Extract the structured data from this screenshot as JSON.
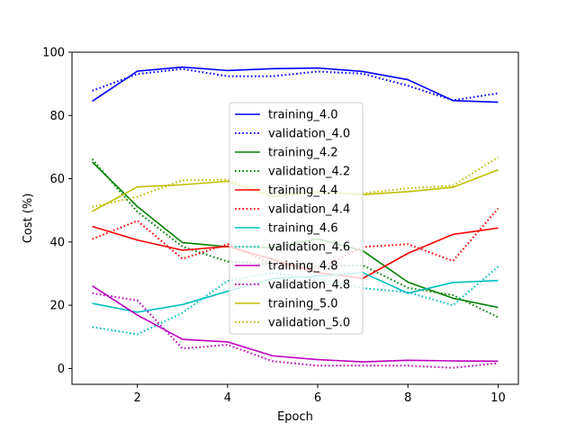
{
  "chart_data": {
    "type": "line",
    "title": "",
    "xlabel": "Epoch",
    "ylabel": "Cost (%)",
    "xlim": [
      0.55,
      10.45
    ],
    "ylim": [
      -5,
      100
    ],
    "xticks": [
      2,
      4,
      6,
      8,
      10
    ],
    "yticks": [
      0,
      20,
      40,
      60,
      80,
      100
    ],
    "grid": false,
    "legend_position": "center",
    "x": [
      1,
      2,
      3,
      4,
      5,
      6,
      7,
      8,
      9,
      10
    ],
    "series": [
      {
        "name": "training_4.0",
        "color": "#0000ff",
        "style": "solid",
        "values": [
          84.5,
          94.0,
          95.3,
          94.2,
          94.8,
          95.0,
          93.9,
          91.3,
          84.7,
          84.2
        ]
      },
      {
        "name": "validation_4.0",
        "color": "#0000ff",
        "style": "dotted",
        "values": [
          87.8,
          93.1,
          94.7,
          92.4,
          92.4,
          93.9,
          93.2,
          89.4,
          84.8,
          87.0
        ]
      },
      {
        "name": "training_4.2",
        "color": "#008000",
        "style": "solid",
        "values": [
          65.3,
          51.2,
          39.8,
          38.5,
          38.2,
          41.0,
          37.2,
          27.3,
          22.2,
          19.3
        ]
      },
      {
        "name": "validation_4.2",
        "color": "#008000",
        "style": "dotted",
        "values": [
          66.2,
          49.5,
          38.5,
          33.8,
          33.0,
          32.4,
          32.6,
          25.5,
          23.2,
          16.2
        ]
      },
      {
        "name": "training_4.4",
        "color": "#ff0000",
        "style": "solid",
        "values": [
          44.9,
          40.6,
          37.4,
          38.6,
          34.5,
          30.3,
          28.5,
          36.4,
          42.4,
          44.4
        ]
      },
      {
        "name": "validation_4.4",
        "color": "#ff0000",
        "style": "dotted",
        "values": [
          40.9,
          46.7,
          34.7,
          39.3,
          33.0,
          31.5,
          38.4,
          39.3,
          34.0,
          50.6
        ]
      },
      {
        "name": "training_4.6",
        "color": "#00bfbf",
        "style": "solid",
        "values": [
          20.6,
          17.8,
          20.2,
          24.4,
          28.4,
          29.2,
          30.3,
          23.8,
          27.2,
          27.8
        ]
      },
      {
        "name": "validation_4.6",
        "color": "#00bfbf",
        "style": "dotted",
        "values": [
          13.1,
          10.8,
          17.6,
          27.7,
          30.2,
          28.3,
          25.4,
          24.1,
          20.0,
          32.2
        ]
      },
      {
        "name": "training_4.8",
        "color": "#bf00bf",
        "style": "solid",
        "values": [
          26.1,
          16.9,
          9.2,
          8.4,
          4.0,
          2.8,
          2.1,
          2.6,
          2.4,
          2.3
        ]
      },
      {
        "name": "validation_4.8",
        "color": "#bf00bf",
        "style": "dotted",
        "values": [
          23.8,
          21.5,
          6.3,
          7.5,
          2.3,
          0.9,
          0.9,
          0.9,
          0.2,
          1.7
        ]
      },
      {
        "name": "training_5.0",
        "color": "#bfbf00",
        "style": "solid",
        "values": [
          49.7,
          57.4,
          58.1,
          59.2,
          54.3,
          55.8,
          55.0,
          55.9,
          57.3,
          62.8
        ]
      },
      {
        "name": "validation_5.0",
        "color": "#bfbf00",
        "style": "dotted",
        "values": [
          51.1,
          54.3,
          59.5,
          59.7,
          55.5,
          55.6,
          55.4,
          57.0,
          57.8,
          66.8
        ]
      }
    ]
  }
}
